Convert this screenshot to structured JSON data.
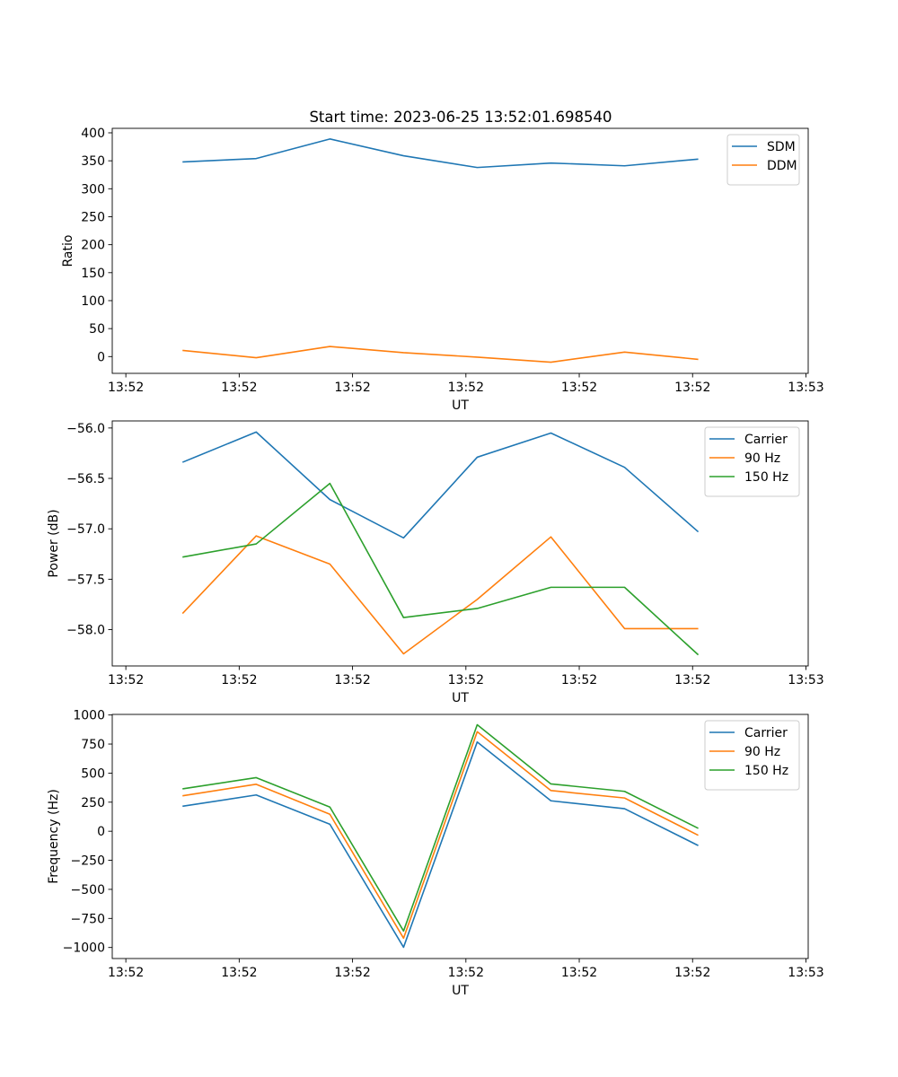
{
  "title": "Start time: 2023-06-25 13:52:01.698540",
  "chart_data": [
    {
      "type": "line",
      "xlabel": "UT",
      "ylabel": "Ratio",
      "x_ticks": [
        "13:52",
        "13:52",
        "13:52",
        "13:52",
        "13:52",
        "13:52",
        "13:53"
      ],
      "x_tick_values": [
        0,
        1,
        2,
        3,
        4,
        5,
        6
      ],
      "xlim": [
        -0.12,
        6.02
      ],
      "ylim": [
        -30,
        408
      ],
      "y_ticks": [
        0,
        50,
        100,
        150,
        200,
        250,
        300,
        350,
        400
      ],
      "y_tick_labels": [
        "0",
        "50",
        "100",
        "150",
        "200",
        "250",
        "300",
        "350",
        "400"
      ],
      "x": [
        0.5,
        1.15,
        1.8,
        2.45,
        3.1,
        3.75,
        4.4,
        5.05
      ],
      "legend_position": "top-right",
      "series": [
        {
          "name": "SDM",
          "color": "#1f77b4",
          "values": [
            348,
            354,
            389,
            359,
            338,
            346,
            341,
            353
          ]
        },
        {
          "name": "DDM",
          "color": "#ff7f0e",
          "values": [
            11,
            -2,
            18,
            7,
            -1,
            -10,
            8,
            -5
          ]
        }
      ]
    },
    {
      "type": "line",
      "xlabel": "UT",
      "ylabel": "Power (dB)",
      "x_ticks": [
        "13:52",
        "13:52",
        "13:52",
        "13:52",
        "13:52",
        "13:52",
        "13:53"
      ],
      "x_tick_values": [
        0,
        1,
        2,
        3,
        4,
        5,
        6
      ],
      "xlim": [
        -0.12,
        6.02
      ],
      "ylim": [
        -58.36,
        -55.93
      ],
      "y_ticks": [
        -58.0,
        -57.5,
        -57.0,
        -56.5,
        -56.0
      ],
      "y_tick_labels": [
        "−58.0",
        "−57.5",
        "−57.0",
        "−56.5",
        "−56.0"
      ],
      "x": [
        0.5,
        1.15,
        1.8,
        2.45,
        3.1,
        3.75,
        4.4,
        5.05
      ],
      "legend_position": "top-right",
      "series": [
        {
          "name": "Carrier",
          "color": "#1f77b4",
          "values": [
            -56.34,
            -56.04,
            -56.71,
            -57.09,
            -56.29,
            -56.05,
            -56.39,
            -57.03
          ]
        },
        {
          "name": "90 Hz",
          "color": "#ff7f0e",
          "values": [
            -57.84,
            -57.07,
            -57.35,
            -58.24,
            -57.7,
            -57.08,
            -57.99,
            -57.99
          ]
        },
        {
          "name": "150 Hz",
          "color": "#2ca02c",
          "values": [
            -57.28,
            -57.15,
            -56.55,
            -57.88,
            -57.79,
            -57.58,
            -57.58,
            -58.25
          ]
        }
      ]
    },
    {
      "type": "line",
      "xlabel": "UT",
      "ylabel": "Frequency (Hz)",
      "x_ticks": [
        "13:52",
        "13:52",
        "13:52",
        "13:52",
        "13:52",
        "13:52",
        "13:53"
      ],
      "x_tick_values": [
        0,
        1,
        2,
        3,
        4,
        5,
        6
      ],
      "xlim": [
        -0.12,
        6.02
      ],
      "ylim": [
        -1095,
        1005
      ],
      "y_ticks": [
        -1000,
        -750,
        -500,
        -250,
        0,
        250,
        500,
        750,
        1000
      ],
      "y_tick_labels": [
        "−1000",
        "−750",
        "−500",
        "−250",
        "0",
        "250",
        "500",
        "750",
        "1000"
      ],
      "x": [
        0.5,
        1.15,
        1.8,
        2.45,
        3.1,
        3.75,
        4.4,
        5.05
      ],
      "legend_position": "top-right",
      "series": [
        {
          "name": "Carrier",
          "color": "#1f77b4",
          "values": [
            215,
            312,
            60,
            -998,
            768,
            262,
            194,
            -123
          ]
        },
        {
          "name": "90 Hz",
          "color": "#ff7f0e",
          "values": [
            305,
            404,
            146,
            -920,
            856,
            350,
            286,
            -35
          ]
        },
        {
          "name": "150 Hz",
          "color": "#2ca02c",
          "values": [
            365,
            461,
            208,
            -858,
            916,
            407,
            343,
            25
          ]
        }
      ]
    }
  ]
}
